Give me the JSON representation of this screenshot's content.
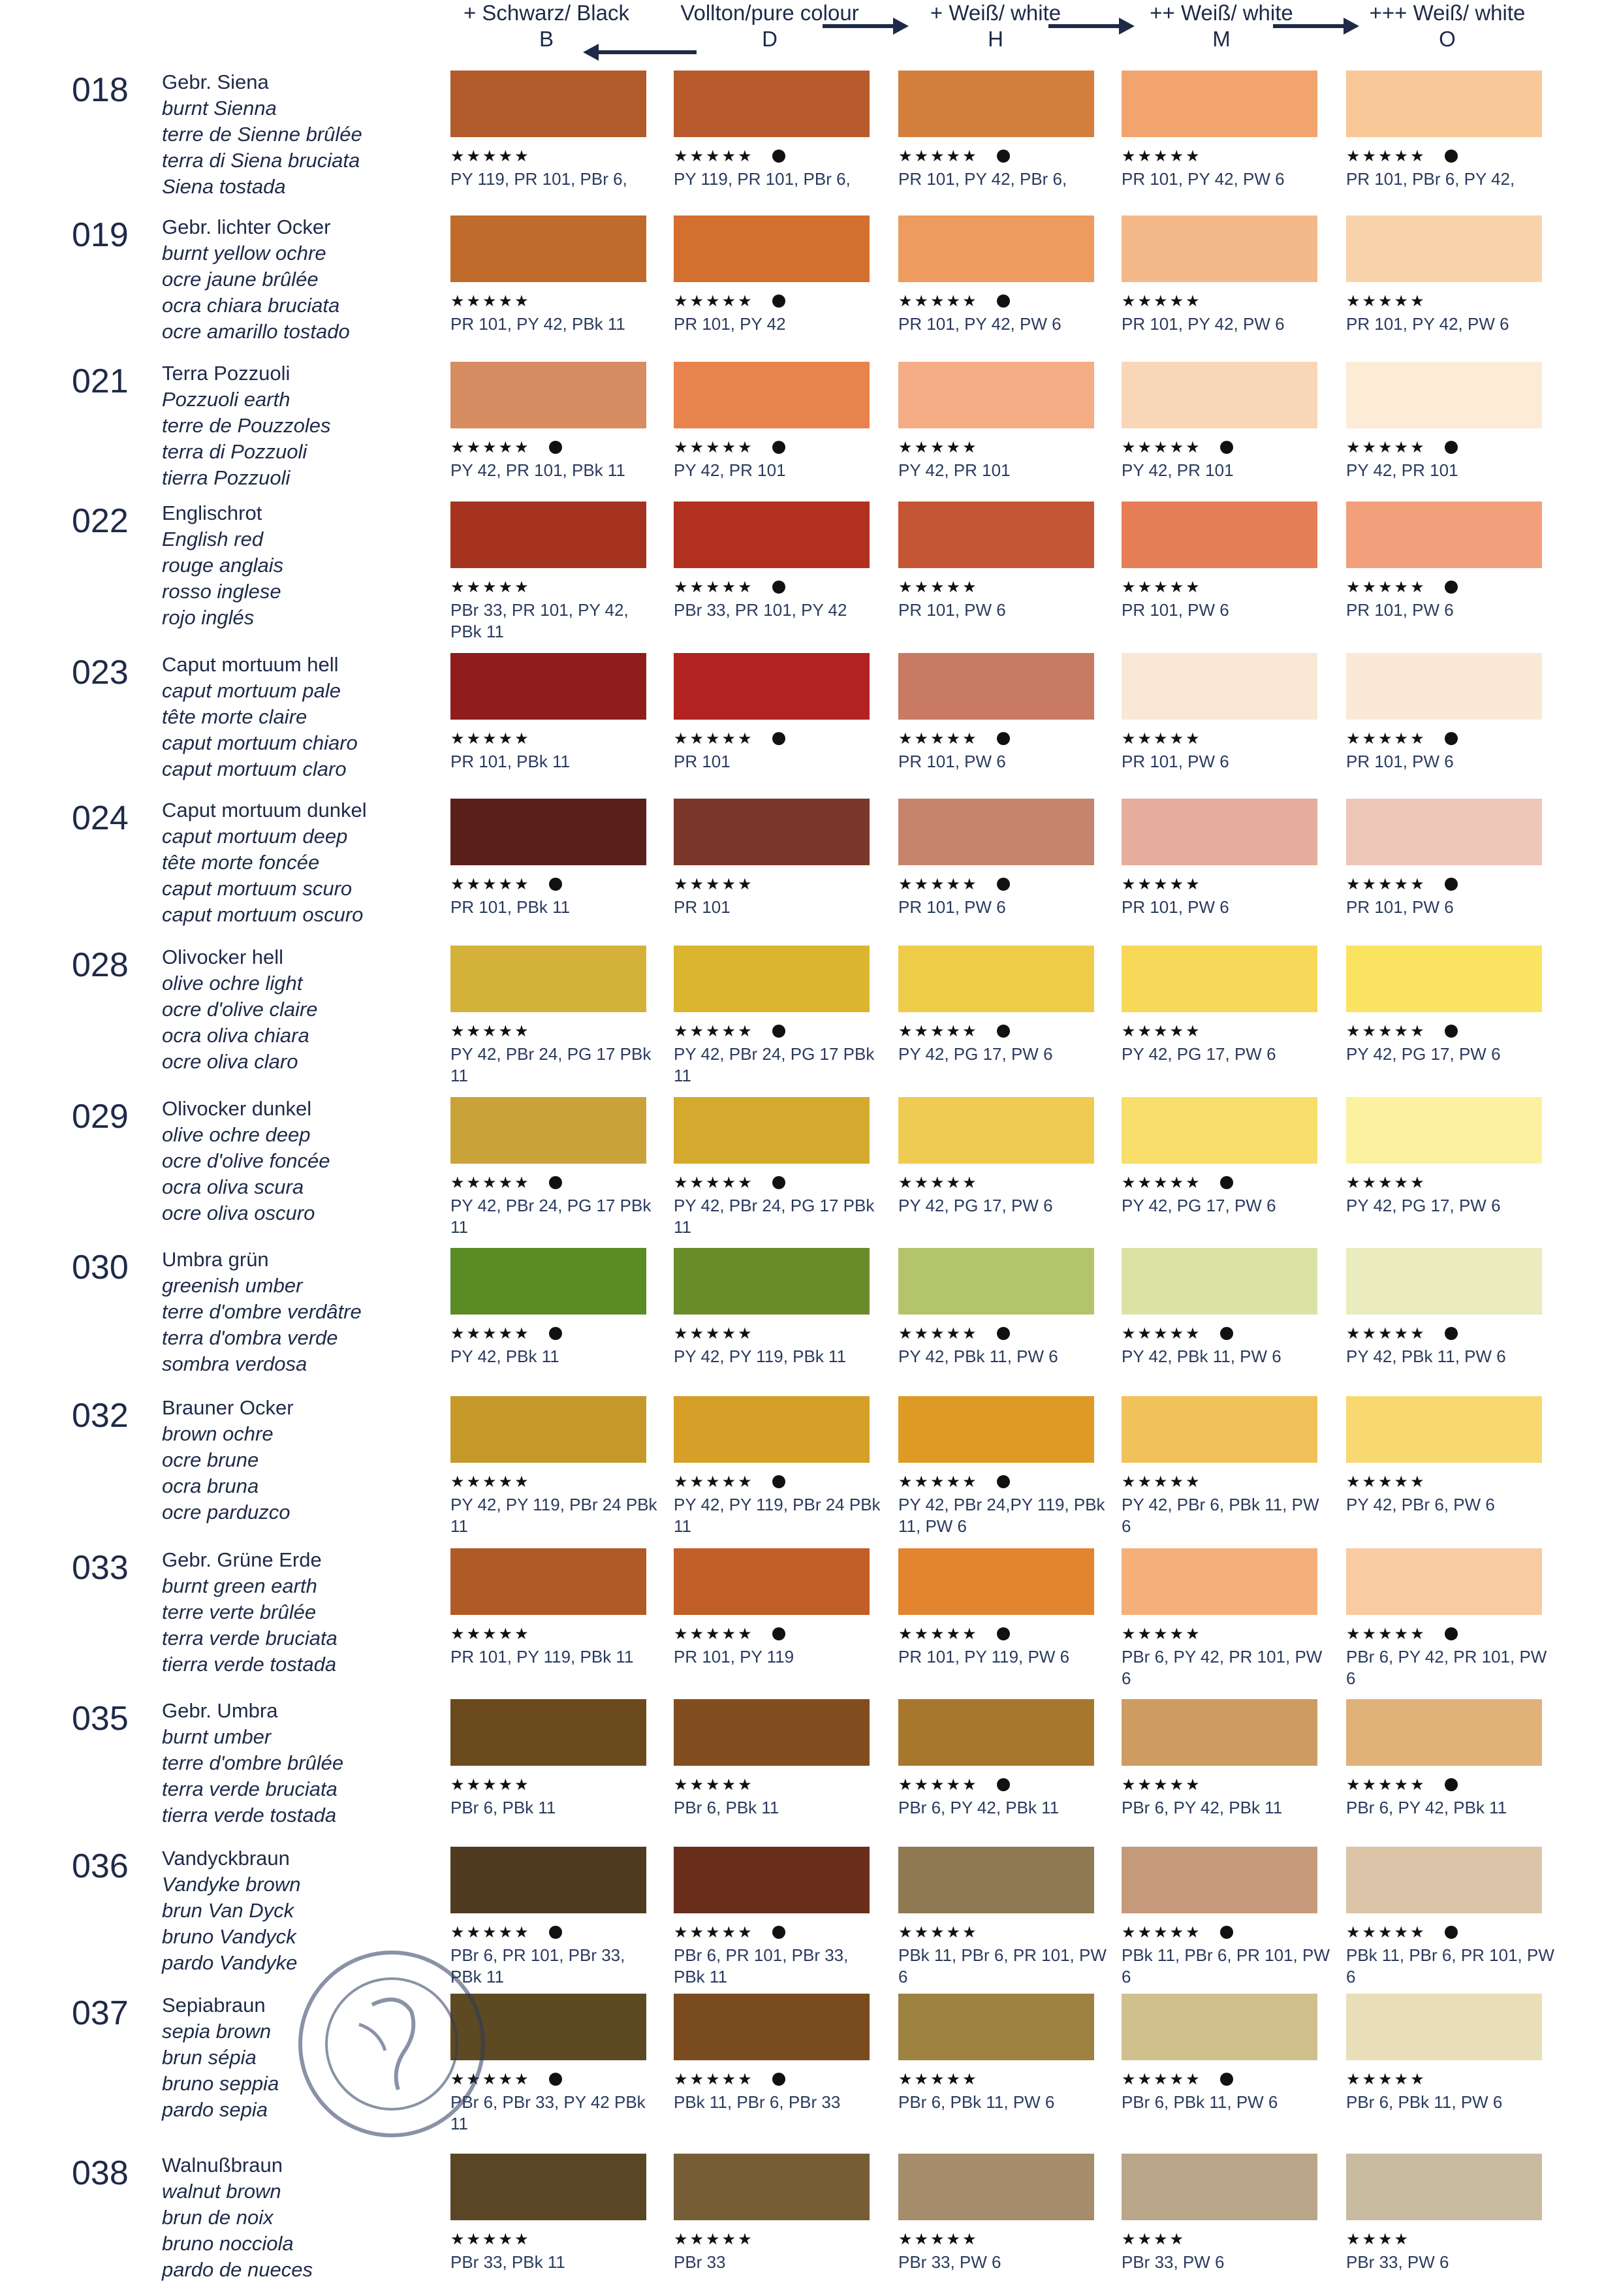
{
  "header": {
    "columns": [
      {
        "label": "+ Schwarz/ Black",
        "code": "B"
      },
      {
        "label": "Vollton/pure colour",
        "code": "D"
      },
      {
        "label": "+ Weiß/ white",
        "code": "H"
      },
      {
        "label": "++ Weiß/ white",
        "code": "M"
      },
      {
        "label": "+++ Weiß/ white",
        "code": "O"
      }
    ]
  },
  "rows": [
    {
      "code": "018",
      "names": [
        "Gebr. Siena",
        "burnt Sienna",
        "terre de Sienne brûlée",
        "terra di Siena bruciata",
        "Siena tostada"
      ],
      "cells": [
        {
          "color": "#b25a2a",
          "stars": "★★★★★",
          "dot": false,
          "pigments": "PY 119, PR 101, PBr 6,"
        },
        {
          "color": "#b95a2c",
          "stars": "★★★★★",
          "dot": true,
          "pigments": "PY 119, PR 101, PBr 6,"
        },
        {
          "color": "#d57f3f",
          "stars": "★★★★★",
          "dot": true,
          "pigments": "PR 101, PY 42, PBr 6,"
        },
        {
          "color": "#f2a46e",
          "stars": "★★★★★",
          "dot": false,
          "pigments": "PR 101, PY 42, PW 6"
        },
        {
          "color": "#f8c898",
          "stars": "★★★★★",
          "dot": true,
          "pigments": "PR 101, PBr 6, PY 42,"
        }
      ]
    },
    {
      "code": "019",
      "names": [
        "Gebr. lichter Ocker",
        "burnt yellow ochre",
        "ocre jaune brûlée",
        "ocra chiara bruciata",
        "ocre amarillo tostado"
      ],
      "cells": [
        {
          "color": "#c06a2c",
          "stars": "★★★★★",
          "dot": false,
          "pigments": "PR 101, PY 42, PBk 11"
        },
        {
          "color": "#d36f2f",
          "stars": "★★★★★",
          "dot": true,
          "pigments": "PR 101, PY 42"
        },
        {
          "color": "#ed9b5e",
          "stars": "★★★★★",
          "dot": true,
          "pigments": "PR 101, PY 42, PW 6"
        },
        {
          "color": "#f5b888",
          "stars": "★★★★★",
          "dot": false,
          "pigments": "PR 101, PY 42, PW 6"
        },
        {
          "color": "#f9d3ac",
          "stars": "★★★★★",
          "dot": false,
          "pigments": "PR 101, PY 42, PW 6"
        }
      ]
    },
    {
      "code": "021",
      "names": [
        "Terra Pozzuoli",
        "Pozzuoli earth",
        "terre de Pouzzoles",
        "terra di Pozzuoli",
        "tierra Pozzuoli"
      ],
      "cells": [
        {
          "color": "#d78c62",
          "stars": "★★★★★",
          "dot": true,
          "pigments": "PY 42, PR 101, PBk 11"
        },
        {
          "color": "#e9834e",
          "stars": "★★★★★",
          "dot": true,
          "pigments": "PY 42, PR 101"
        },
        {
          "color": "#f5ad86",
          "stars": "★★★★★",
          "dot": false,
          "pigments": "PY 42, PR 101"
        },
        {
          "color": "#f9d6b8",
          "stars": "★★★★★",
          "dot": true,
          "pigments": "PY 42, PR 101"
        },
        {
          "color": "#fcecd6",
          "stars": "★★★★★",
          "dot": true,
          "pigments": "PY 42, PR 101"
        }
      ]
    },
    {
      "code": "022",
      "names": [
        "Englischrot",
        "English red",
        "rouge anglais",
        "rosso inglese",
        "rojo inglés"
      ],
      "cells": [
        {
          "color": "#a53320",
          "stars": "★★★★★",
          "dot": false,
          "pigments": "PBr 33, PR 101, PY 42, PBk 11"
        },
        {
          "color": "#b1301f",
          "stars": "★★★★★",
          "dot": true,
          "pigments": "PBr 33, PR 101, PY 42"
        },
        {
          "color": "#c45535",
          "stars": "★★★★★",
          "dot": false,
          "pigments": "PR 101, PW 6"
        },
        {
          "color": "#e67e58",
          "stars": "★★★★★",
          "dot": false,
          "pigments": "PR 101, PW 6"
        },
        {
          "color": "#f2a07c",
          "stars": "★★★★★",
          "dot": true,
          "pigments": "PR 101, PW 6"
        }
      ]
    },
    {
      "code": "023",
      "names": [
        "Caput mortuum hell",
        "caput mortuum pale",
        "tête morte claire",
        "caput mortuum chiaro",
        "caput mortuum claro"
      ],
      "cells": [
        {
          "color": "#8f1d1d",
          "stars": "★★★★★",
          "dot": false,
          "pigments": "PR 101, PBk 11"
        },
        {
          "color": "#b22220",
          "stars": "★★★★★",
          "dot": true,
          "pigments": "PR 101"
        },
        {
          "color": "#c87a62",
          "stars": "★★★★★",
          "dot": true,
          "pigments": "PR 101, PW 6"
        },
        {
          "color": "#fae8d6",
          "stars": "★★★★★",
          "dot": false,
          "pigments": "PR 101, PW 6"
        },
        {
          "color": "#fbe9d8",
          "stars": "★★★★★",
          "dot": true,
          "pigments": "PR 101, PW 6"
        }
      ]
    },
    {
      "code": "024",
      "names": [
        "Caput mortuum dunkel",
        "caput mortuum deep",
        "tête morte foncée",
        "caput mortuum scuro",
        "caput mortuum oscuro"
      ],
      "cells": [
        {
          "color": "#5a201b",
          "stars": "★★★★★",
          "dot": true,
          "pigments": "PR 101, PBk 11"
        },
        {
          "color": "#7a3628",
          "stars": "★★★★★",
          "dot": false,
          "pigments": "PR 101"
        },
        {
          "color": "#c6836e",
          "stars": "★★★★★",
          "dot": true,
          "pigments": "PR 101, PW 6"
        },
        {
          "color": "#e4ad9c",
          "stars": "★★★★★",
          "dot": false,
          "pigments": "PR 101, PW 6"
        },
        {
          "color": "#efc7b8",
          "stars": "★★★★★",
          "dot": true,
          "pigments": "PR 101, PW 6"
        }
      ]
    },
    {
      "code": "028",
      "names": [
        "Olivocker hell",
        "olive ochre light",
        "ocre d'olive claire",
        "ocra oliva chiara",
        "ocre oliva claro"
      ],
      "cells": [
        {
          "color": "#d4b23a",
          "stars": "★★★★★",
          "dot": false,
          "pigments": "PY 42, PBr 24, PG 17 PBk 11"
        },
        {
          "color": "#dcb52e",
          "stars": "★★★★★",
          "dot": true,
          "pigments": "PY 42, PBr 24, PG 17 PBk 11"
        },
        {
          "color": "#efcb4a",
          "stars": "★★★★★",
          "dot": true,
          "pigments": "PY 42, PG 17, PW 6"
        },
        {
          "color": "#f7d858",
          "stars": "★★★★★",
          "dot": false,
          "pigments": "PY 42, PG 17, PW 6"
        },
        {
          "color": "#fbe362",
          "stars": "★★★★★",
          "dot": true,
          "pigments": "PY 42, PG 17, PW 6"
        }
      ]
    },
    {
      "code": "029",
      "names": [
        "Olivocker dunkel",
        "olive ochre deep",
        "ocre d'olive foncée",
        "ocra oliva scura",
        "ocre oliva oscuro"
      ],
      "cells": [
        {
          "color": "#c9a23a",
          "stars": "★★★★★",
          "dot": true,
          "pigments": "PY 42, PBr 24, PG 17 PBk 11"
        },
        {
          "color": "#d3aa2e",
          "stars": "★★★★★",
          "dot": true,
          "pigments": "PY 42, PBr 24, PG 17 PBk 11"
        },
        {
          "color": "#f0cb52",
          "stars": "★★★★★",
          "dot": false,
          "pigments": "PY 42, PG 17, PW 6"
        },
        {
          "color": "#f8de6a",
          "stars": "★★★★★",
          "dot": true,
          "pigments": "PY 42, PG 17, PW 6"
        },
        {
          "color": "#fcf1a0",
          "stars": "★★★★★",
          "dot": false,
          "pigments": "PY 42, PG 17, PW 6"
        }
      ]
    },
    {
      "code": "030",
      "names": [
        "Umbra grün",
        "greenish umber",
        "terre d'ombre verdâtre",
        "terra d'ombra verde",
        "sombra verdosa"
      ],
      "cells": [
        {
          "color": "#5a8b24",
          "stars": "★★★★★",
          "dot": true,
          "pigments": "PY 42, PBk 11"
        },
        {
          "color": "#6b8c2a",
          "stars": "★★★★★",
          "dot": false,
          "pigments": "PY 42, PY 119, PBk 11"
        },
        {
          "color": "#b4c46a",
          "stars": "★★★★★",
          "dot": true,
          "pigments": "PY 42, PBk 11, PW 6"
        },
        {
          "color": "#dbe3a4",
          "stars": "★★★★★",
          "dot": true,
          "pigments": "PY 42, PBk 11, PW 6"
        },
        {
          "color": "#eaecc0",
          "stars": "★★★★★",
          "dot": true,
          "pigments": "PY 42, PBk 11, PW 6"
        }
      ]
    },
    {
      "code": "032",
      "names": [
        "Brauner Ocker",
        "brown ochre",
        "ocre brune",
        "ocra bruna",
        "ocre parduzco"
      ],
      "cells": [
        {
          "color": "#c69a2a",
          "stars": "★★★★★",
          "dot": false,
          "pigments": "PY 42, PY 119, PBr 24 PBk 11"
        },
        {
          "color": "#d59f28",
          "stars": "★★★★★",
          "dot": true,
          "pigments": "PY 42, PY 119, PBr 24 PBk 11"
        },
        {
          "color": "#df9a26",
          "stars": "★★★★★",
          "dot": true,
          "pigments": "PY 42, PBr 24,PY 119, PBk 11, PW 6"
        },
        {
          "color": "#f1c25a",
          "stars": "★★★★★",
          "dot": false,
          "pigments": "PY 42, PBr 6, PBk 11, PW 6"
        },
        {
          "color": "#f8d870",
          "stars": "★★★★★",
          "dot": false,
          "pigments": "PY 42, PBr 6, PW 6"
        }
      ]
    },
    {
      "code": "033",
      "names": [
        "Gebr. Grüne Erde",
        "burnt green earth",
        "terre verte brûlée",
        "terra verde bruciata",
        "tierra verde tostada"
      ],
      "cells": [
        {
          "color": "#b05a26",
          "stars": "★★★★★",
          "dot": false,
          "pigments": "PR 101, PY 119, PBk 11"
        },
        {
          "color": "#c25e27",
          "stars": "★★★★★",
          "dot": true,
          "pigments": "PR 101, PY 119"
        },
        {
          "color": "#e3852f",
          "stars": "★★★★★",
          "dot": true,
          "pigments": "PR 101, PY 119, PW 6"
        },
        {
          "color": "#f5b07a",
          "stars": "★★★★★",
          "dot": false,
          "pigments": "PBr 6, PY 42, PR 101, PW 6"
        },
        {
          "color": "#f9cba2",
          "stars": "★★★★★",
          "dot": true,
          "pigments": "PBr 6, PY 42, PR 101, PW 6"
        }
      ]
    },
    {
      "code": "035",
      "names": [
        "Gebr. Umbra",
        "burnt umber",
        "terre d'ombre brûlée",
        "terra verde bruciata",
        "tierra verde tostada"
      ],
      "cells": [
        {
          "color": "#6b4a1e",
          "stars": "★★★★★",
          "dot": false,
          "pigments": "PBr 6, PBk 11"
        },
        {
          "color": "#834e1f",
          "stars": "★★★★★",
          "dot": false,
          "pigments": "PBr 6, PBk 11"
        },
        {
          "color": "#a8772e",
          "stars": "★★★★★",
          "dot": true,
          "pigments": "PBr 6, PY 42, PBk 11"
        },
        {
          "color": "#cd9c62",
          "stars": "★★★★★",
          "dot": false,
          "pigments": "PBr 6, PY 42, PBk 11"
        },
        {
          "color": "#e0b27a",
          "stars": "★★★★★",
          "dot": true,
          "pigments": "PBr 6, PY 42, PBk 11"
        }
      ]
    },
    {
      "code": "036",
      "names": [
        "Vandyckbraun",
        "Vandyke brown",
        "brun Van Dyck",
        "bruno Vandyck",
        "pardo Vandyke"
      ],
      "cells": [
        {
          "color": "#4f3b1f",
          "stars": "★★★★★",
          "dot": true,
          "pigments": "PBr 6, PR 101, PBr 33, PBk 11"
        },
        {
          "color": "#6a2e1c",
          "stars": "★★★★★",
          "dot": true,
          "pigments": "PBr 6, PR 101, PBr 33, PBk 11"
        },
        {
          "color": "#8f7952",
          "stars": "★★★★★",
          "dot": false,
          "pigments": "PBk 11, PBr 6, PR 101, PW 6"
        },
        {
          "color": "#c59a7a",
          "stars": "★★★★★",
          "dot": true,
          "pigments": "PBk 11, PBr 6, PR 101, PW 6"
        },
        {
          "color": "#dcc4a8",
          "stars": "★★★★★",
          "dot": true,
          "pigments": "PBk 11, PBr 6, PR 101, PW 6"
        }
      ]
    },
    {
      "code": "037",
      "names": [
        "Sepiabraun",
        "sepia brown",
        "brun sépia",
        "bruno seppia",
        "pardo sepia"
      ],
      "cells": [
        {
          "color": "#5e4a22",
          "stars": "★★★★★",
          "dot": true,
          "pigments": "PBr 6, PBr 33, PY 42 PBk 11"
        },
        {
          "color": "#7a4b1e",
          "stars": "★★★★★",
          "dot": true,
          "pigments": "PBk 11, PBr 6, PBr 33"
        },
        {
          "color": "#9e8242",
          "stars": "★★★★★",
          "dot": false,
          "pigments": "PBr 6, PBk 11, PW 6"
        },
        {
          "color": "#cfc08e",
          "stars": "★★★★★",
          "dot": true,
          "pigments": "PBr 6, PBk 11, PW 6"
        },
        {
          "color": "#e8dfb8",
          "stars": "★★★★★",
          "dot": false,
          "pigments": "PBr 6, PBk 11, PW 6"
        }
      ]
    },
    {
      "code": "038",
      "names": [
        "Walnußbraun",
        "walnut brown",
        "brun de noix",
        "bruno nocciola",
        "pardo de nueces"
      ],
      "cells": [
        {
          "color": "#5a4524",
          "stars": "★★★★★",
          "dot": false,
          "pigments": "PBr 33, PBk 11"
        },
        {
          "color": "#775d36",
          "stars": "★★★★★",
          "dot": false,
          "pigments": "PBr 33"
        },
        {
          "color": "#a58c6a",
          "stars": "★★★★★",
          "dot": false,
          "pigments": "PBr 33, PW 6"
        },
        {
          "color": "#b9a688",
          "stars": "★★★★",
          "dot": false,
          "pigments": "PBr 33, PW 6"
        },
        {
          "color": "#c9bba0",
          "stars": "★★★★",
          "dot": false,
          "pigments": "PBr 33, PW 6"
        }
      ]
    }
  ]
}
